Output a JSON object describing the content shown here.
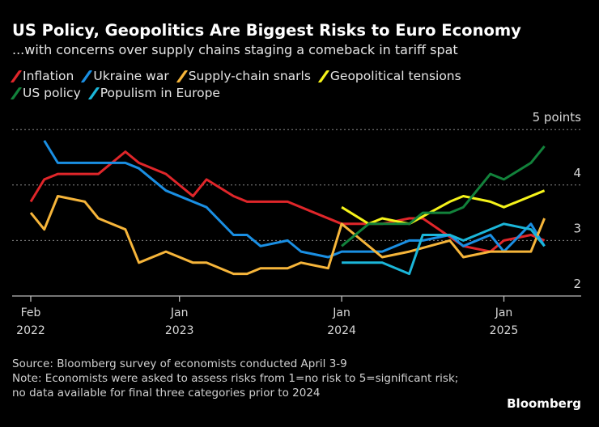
{
  "title": "US Policy, Geopolitics Are Biggest Risks to Euro Economy",
  "subtitle": "...with concerns over supply chains staging a comeback in tariff spat",
  "source": "Source: Bloomberg survey of economists conducted April 3-9",
  "note": "Note: Economists were asked to assess risks from 1=no risk to 5=significant risk; no data available for final three categories prior to 2024",
  "brand": "Bloomberg",
  "chart_data": {
    "type": "line",
    "title": "US Policy, Geopolitics Are Biggest Risks to Euro Economy",
    "ylabel": "points",
    "ylim": [
      2,
      5
    ],
    "yticks": [
      2,
      3,
      4,
      5
    ],
    "ytick_labels": [
      "2",
      "3",
      "4",
      "5 points"
    ],
    "xlim": [
      "2022-02",
      "2025-05"
    ],
    "xticks": [
      {
        "x": "2022-02",
        "line1": "Feb",
        "line2": "2022"
      },
      {
        "x": "2023-01",
        "line1": "Jan",
        "line2": "2023"
      },
      {
        "x": "2024-01",
        "line1": "Jan",
        "line2": "2024"
      },
      {
        "x": "2025-01",
        "line1": "Jan",
        "line2": "2025"
      }
    ],
    "grid": true,
    "legend_position": "top-left",
    "series": [
      {
        "name": "Inflation",
        "color": "#e0262a",
        "points": [
          [
            "2022-02",
            3.7
          ],
          [
            "2022-03",
            4.1
          ],
          [
            "2022-04",
            4.2
          ],
          [
            "2022-07",
            4.2
          ],
          [
            "2022-09",
            4.6
          ],
          [
            "2022-10",
            4.4
          ],
          [
            "2022-12",
            4.2
          ],
          [
            "2023-02",
            3.8
          ],
          [
            "2023-03",
            4.1
          ],
          [
            "2023-05",
            3.8
          ],
          [
            "2023-06",
            3.7
          ],
          [
            "2023-09",
            3.7
          ],
          [
            "2024-01",
            3.3
          ],
          [
            "2024-04",
            3.3
          ],
          [
            "2024-06",
            3.4
          ],
          [
            "2024-07",
            3.4
          ],
          [
            "2024-10",
            2.9
          ],
          [
            "2024-12",
            2.8
          ],
          [
            "2025-01",
            3.0
          ],
          [
            "2025-03",
            3.1
          ],
          [
            "2025-04",
            3.0
          ]
        ]
      },
      {
        "name": "Ukraine war",
        "color": "#1a8fe3",
        "points": [
          [
            "2022-03",
            4.8
          ],
          [
            "2022-04",
            4.4
          ],
          [
            "2022-09",
            4.4
          ],
          [
            "2022-10",
            4.3
          ],
          [
            "2022-12",
            3.9
          ],
          [
            "2023-03",
            3.6
          ],
          [
            "2023-05",
            3.1
          ],
          [
            "2023-06",
            3.1
          ],
          [
            "2023-07",
            2.9
          ],
          [
            "2023-09",
            3.0
          ],
          [
            "2023-10",
            2.8
          ],
          [
            "2023-12",
            2.7
          ],
          [
            "2024-01",
            2.8
          ],
          [
            "2024-04",
            2.8
          ],
          [
            "2024-06",
            3.0
          ],
          [
            "2024-07",
            3.0
          ],
          [
            "2024-09",
            3.1
          ],
          [
            "2024-10",
            2.9
          ],
          [
            "2024-12",
            3.1
          ],
          [
            "2025-01",
            2.8
          ],
          [
            "2025-03",
            3.3
          ],
          [
            "2025-04",
            2.9
          ]
        ]
      },
      {
        "name": "Supply-chain snarls",
        "color": "#f6b53a",
        "points": [
          [
            "2022-02",
            3.5
          ],
          [
            "2022-03",
            3.2
          ],
          [
            "2022-04",
            3.8
          ],
          [
            "2022-06",
            3.7
          ],
          [
            "2022-07",
            3.4
          ],
          [
            "2022-09",
            3.2
          ],
          [
            "2022-10",
            2.6
          ],
          [
            "2022-12",
            2.8
          ],
          [
            "2023-02",
            2.6
          ],
          [
            "2023-03",
            2.6
          ],
          [
            "2023-05",
            2.4
          ],
          [
            "2023-06",
            2.4
          ],
          [
            "2023-07",
            2.5
          ],
          [
            "2023-09",
            2.5
          ],
          [
            "2023-10",
            2.6
          ],
          [
            "2023-12",
            2.5
          ],
          [
            "2024-01",
            3.3
          ],
          [
            "2024-04",
            2.7
          ],
          [
            "2024-06",
            2.8
          ],
          [
            "2024-09",
            3.0
          ],
          [
            "2024-10",
            2.7
          ],
          [
            "2024-12",
            2.8
          ],
          [
            "2025-03",
            2.8
          ],
          [
            "2025-04",
            3.4
          ]
        ]
      },
      {
        "name": "Geopolitical tensions",
        "color": "#f5f31a",
        "points": [
          [
            "2024-01",
            3.6
          ],
          [
            "2024-03",
            3.3
          ],
          [
            "2024-04",
            3.4
          ],
          [
            "2024-06",
            3.3
          ],
          [
            "2024-09",
            3.7
          ],
          [
            "2024-10",
            3.8
          ],
          [
            "2024-12",
            3.7
          ],
          [
            "2025-01",
            3.6
          ],
          [
            "2025-04",
            3.9
          ]
        ]
      },
      {
        "name": "US policy",
        "color": "#12823b",
        "points": [
          [
            "2024-01",
            2.9
          ],
          [
            "2024-03",
            3.3
          ],
          [
            "2024-06",
            3.3
          ],
          [
            "2024-07",
            3.5
          ],
          [
            "2024-09",
            3.5
          ],
          [
            "2024-10",
            3.6
          ],
          [
            "2024-12",
            4.2
          ],
          [
            "2025-01",
            4.1
          ],
          [
            "2025-03",
            4.4
          ],
          [
            "2025-04",
            4.7
          ]
        ]
      },
      {
        "name": "Populism in Europe",
        "color": "#1bb6d9",
        "points": [
          [
            "2024-01",
            2.6
          ],
          [
            "2024-04",
            2.6
          ],
          [
            "2024-06",
            2.4
          ],
          [
            "2024-07",
            3.1
          ],
          [
            "2024-09",
            3.1
          ],
          [
            "2024-10",
            3.0
          ],
          [
            "2025-01",
            3.3
          ],
          [
            "2025-03",
            3.2
          ],
          [
            "2025-04",
            2.9
          ]
        ]
      }
    ]
  }
}
